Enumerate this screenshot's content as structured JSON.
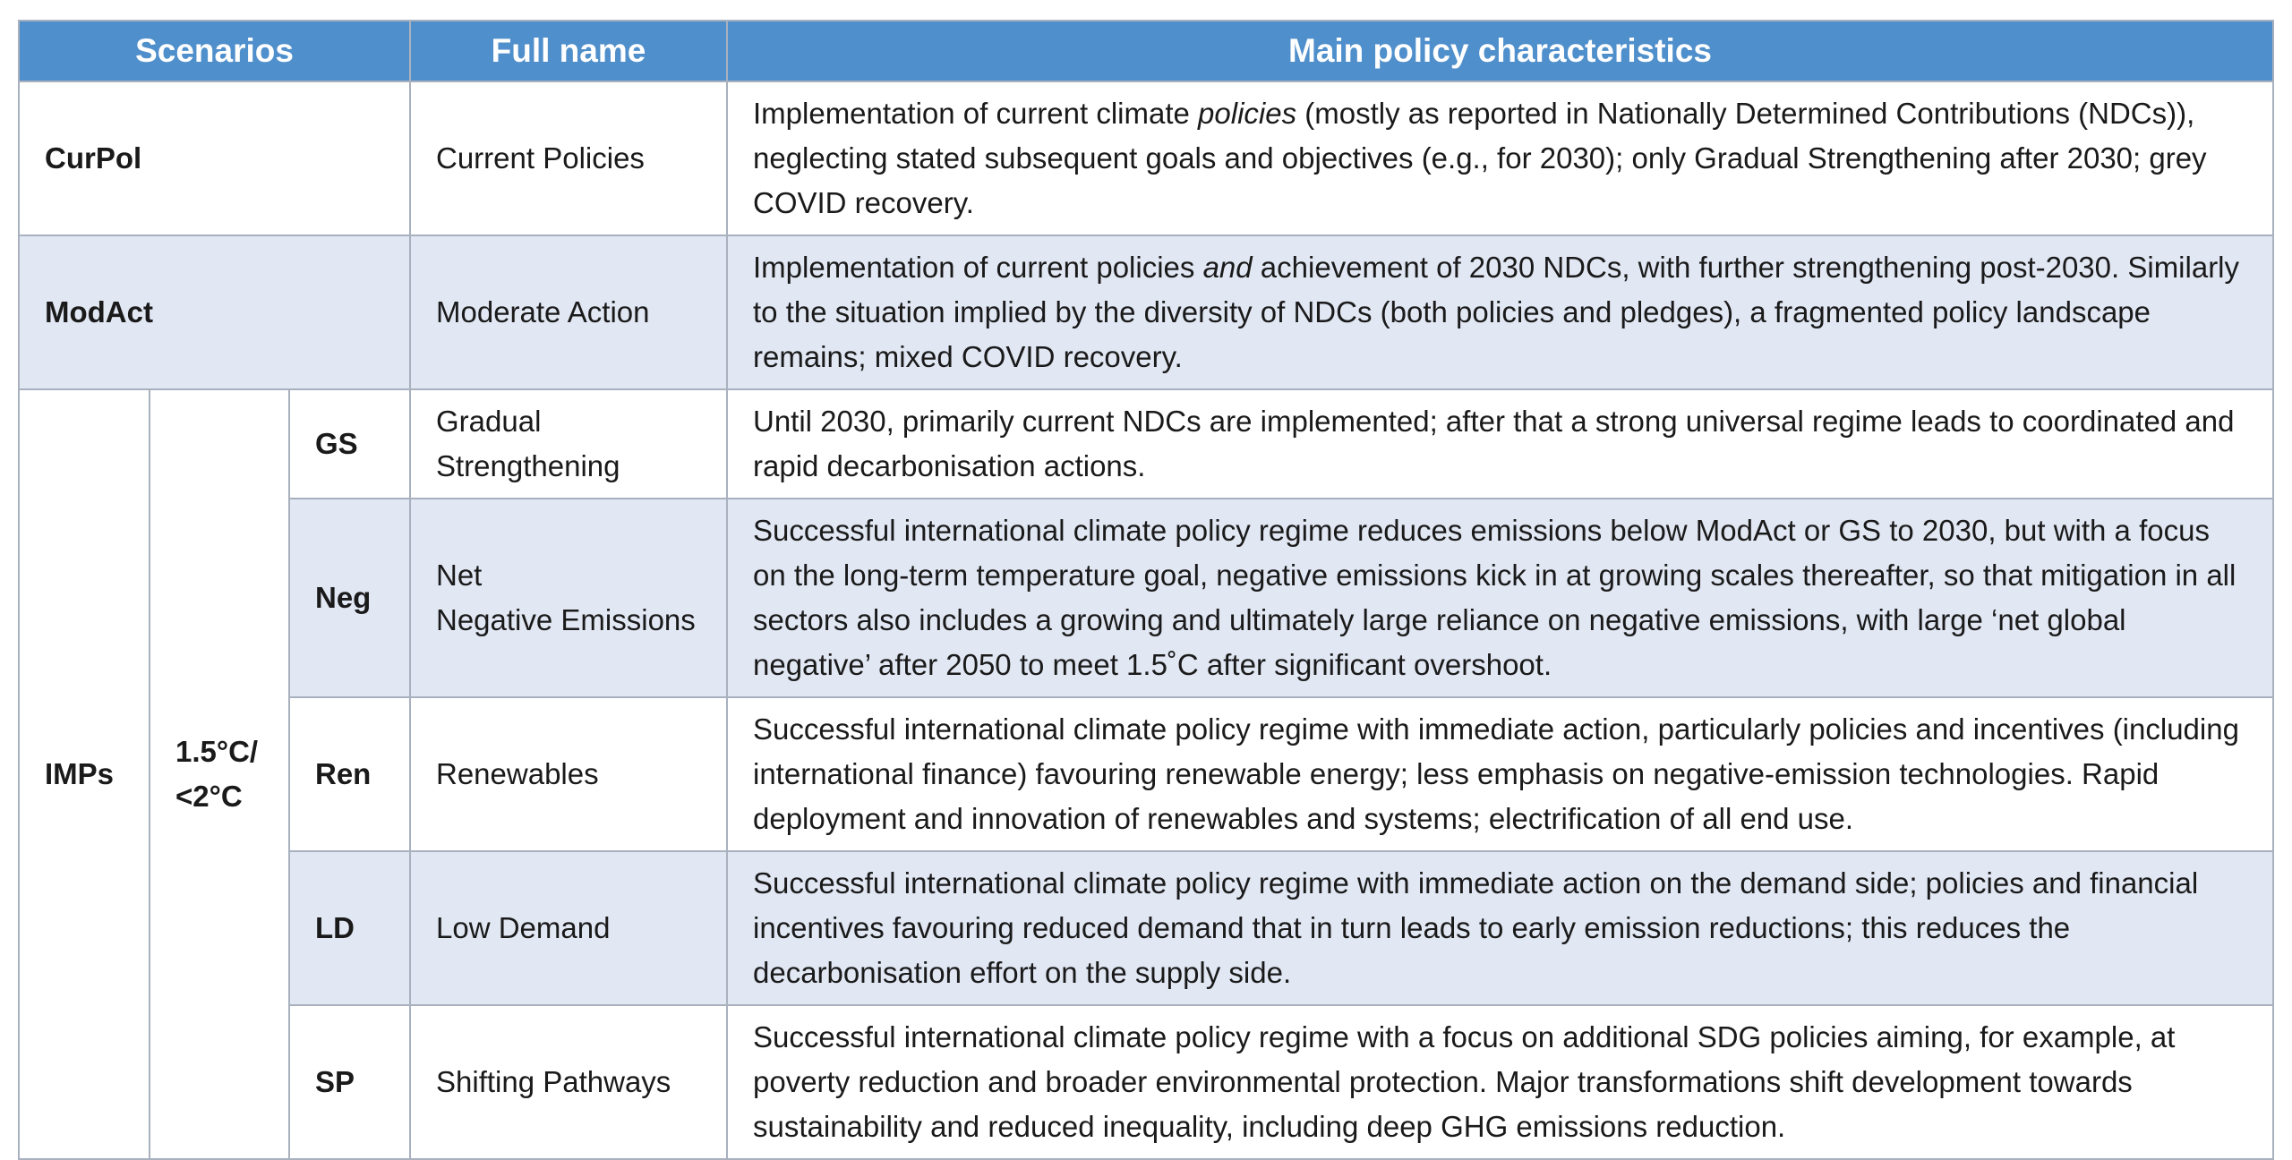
{
  "headers": {
    "scenarios": "Scenarios",
    "full_name": "Full name",
    "characteristics": "Main policy characteristics"
  },
  "rows": {
    "curpol": {
      "code": "CurPol",
      "name": "Current Policies",
      "desc_a": "Implementation of current climate ",
      "desc_em": "policies",
      "desc_b": " (mostly as reported in Nationally Determined Contributions (NDCs)), neglecting stated subsequent goals and objectives (e.g., for 2030); only Gradual Strengthening after 2030; grey COVID recovery."
    },
    "modact": {
      "code": "ModAct",
      "name": "Moderate Action",
      "desc_a": "Implementation of current policies ",
      "desc_em": "and",
      "desc_b": " achievement of 2030 NDCs, with further strengthening post-2030. Similarly to the situation implied by the diversity of NDCs (both policies and pledges), a fragmented policy landscape remains; mixed COVID recovery."
    },
    "imps": {
      "group": "IMPs",
      "target_line1": "1.5°C/",
      "target_line2": "<2°C",
      "items": [
        {
          "code": "GS",
          "name": "Gradual Strengthening",
          "desc": "Until 2030, primarily current NDCs are implemented; after that a strong universal regime leads to coordinated and rapid decarbonisation actions."
        },
        {
          "code": "Neg",
          "name_line1": "Net",
          "name_line2": "Negative Emissions",
          "desc": "Successful international climate policy regime reduces emissions below ModAct or GS to 2030, but with a focus on the long-term temperature goal, negative emissions kick in at growing scales thereafter, so that mitigation in all sectors also includes a growing and ultimately large reliance on negative emissions, with large ‘net global negative’ after 2050 to meet 1.5˚C after significant overshoot."
        },
        {
          "code": "Ren",
          "name": "Renewables",
          "desc": "Successful international climate policy regime with immediate action, particularly policies and incentives (including international finance) favouring renewable energy; less emphasis on negative-emission technologies. Rapid deployment and innovation of renewables and systems; electrification of all end use."
        },
        {
          "code": "LD",
          "name": "Low Demand",
          "desc": "Successful international climate policy regime with immediate action on the demand side; policies and financial incentives favouring reduced demand that in turn leads to early emission reductions; this reduces the decarbonisation effort on the supply side."
        },
        {
          "code": "SP",
          "name": "Shifting Pathways",
          "desc": "Successful international climate policy regime with a focus on additional SDG policies aiming, for example, at poverty reduction and broader environmental protection. Major transformations shift development towards sustainability and reduced inequality, including deep GHG emissions reduction."
        }
      ]
    }
  },
  "colors": {
    "header_bg": "#4f8fcb",
    "alt_row_bg": "#e1e7f3",
    "border": "#a9b1bf"
  }
}
